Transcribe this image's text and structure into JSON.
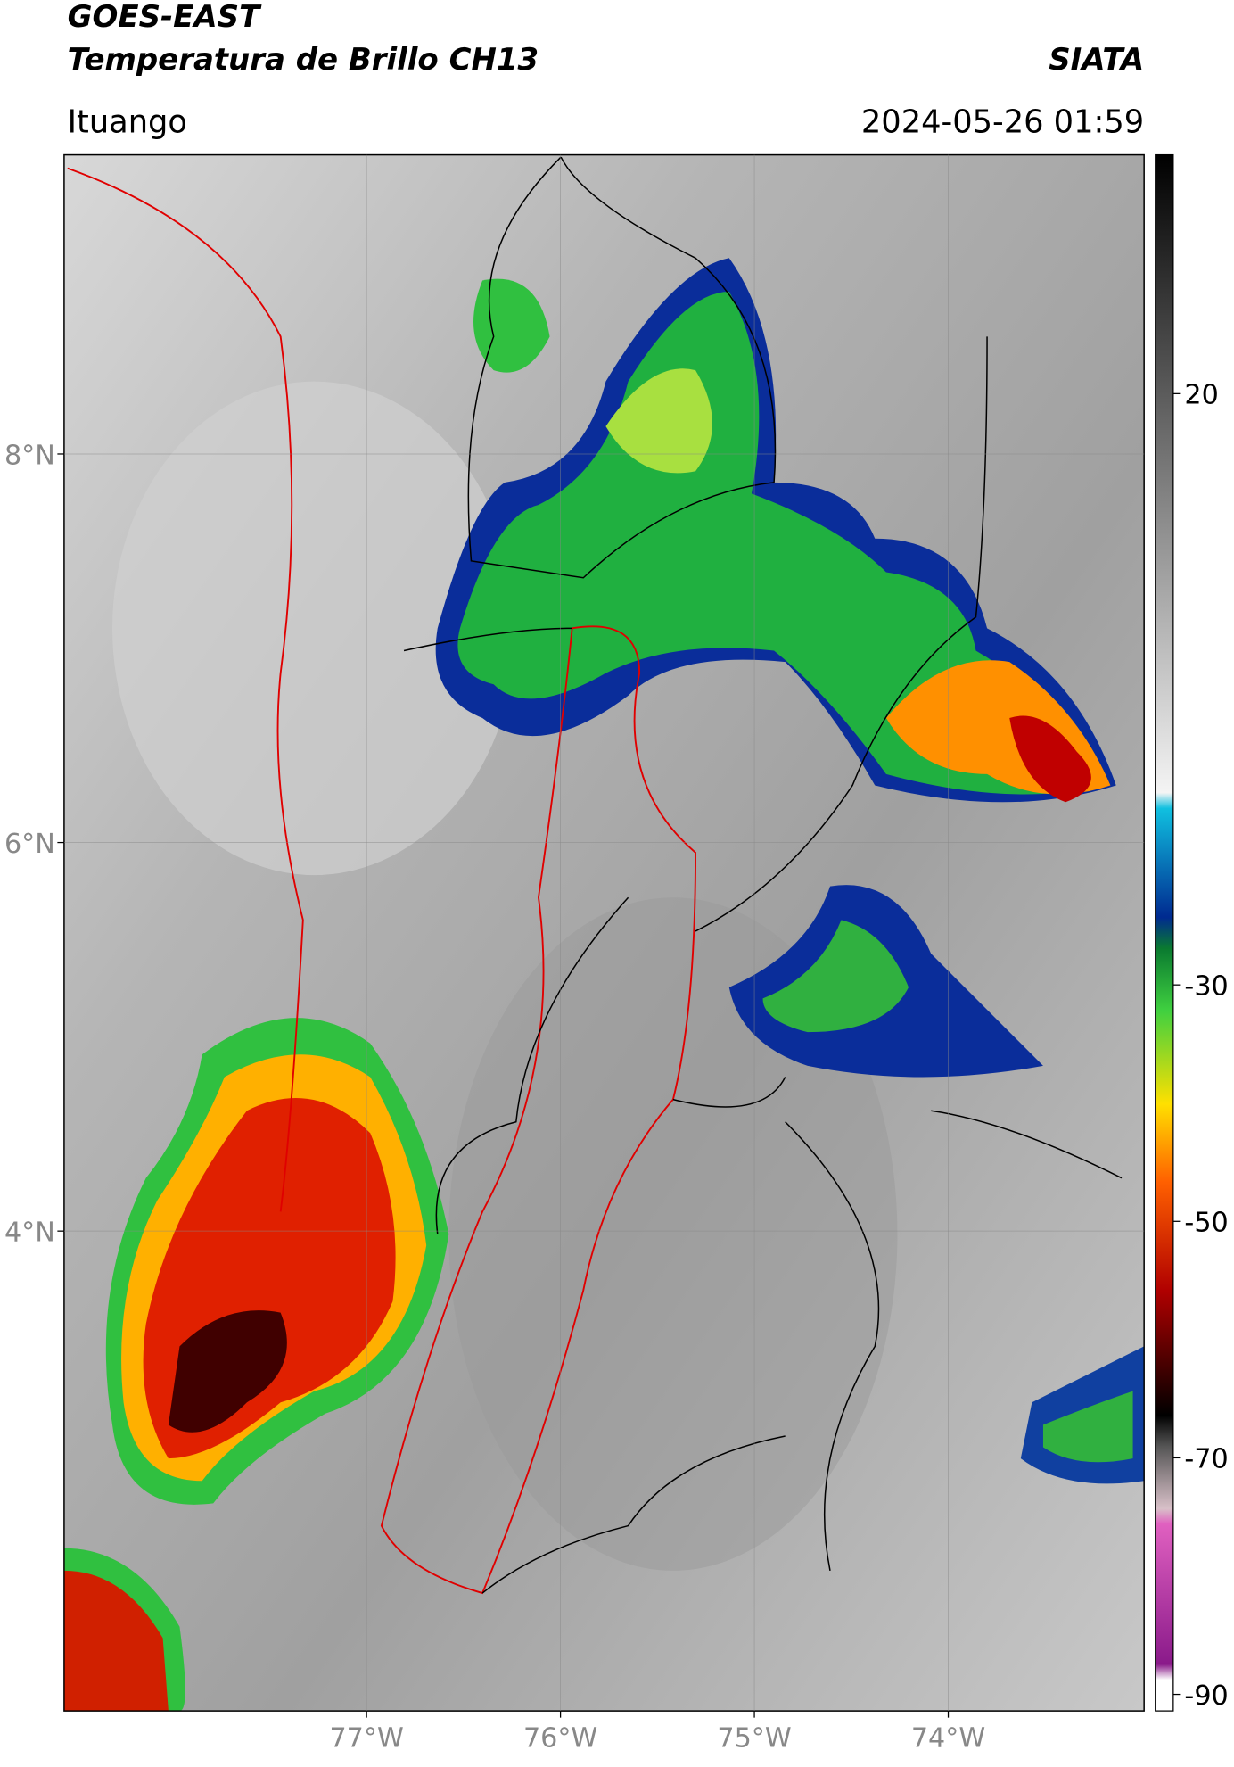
{
  "header": {
    "title_line1": "GOES-EAST",
    "title_line2": "Temperatura de Brillo CH13",
    "source": "SIATA",
    "location": "Ituango",
    "timestamp": "2024-05-26 01:59"
  },
  "map": {
    "xlim": [
      -78.56,
      -72.99
    ],
    "ylim": [
      1.53,
      9.54
    ],
    "xticks": [
      {
        "value": -77,
        "label": "77°W"
      },
      {
        "value": -76,
        "label": "76°W"
      },
      {
        "value": -75,
        "label": "75°W"
      },
      {
        "value": -74,
        "label": "74°W"
      }
    ],
    "yticks": [
      {
        "value": 8,
        "label": "8°N"
      },
      {
        "value": 6,
        "label": "6°N"
      },
      {
        "value": 4,
        "label": "4°N"
      }
    ]
  },
  "colorbar": {
    "lim": [
      -91.4,
      40.2
    ],
    "ticks": [
      20,
      -30,
      -50,
      -70,
      -90
    ]
  }
}
